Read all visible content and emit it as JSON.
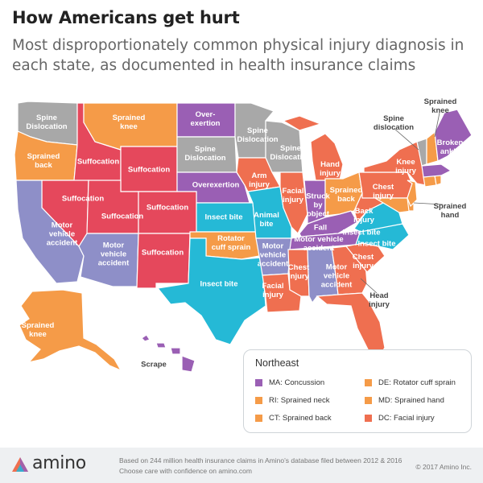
{
  "title": "How Americans get hurt",
  "subtitle": "Most disproportionately common physical injury diagnosis in each state, as documented in health insurance claims",
  "colors": {
    "gray": "#a8a8a8",
    "orange": "#f59b48",
    "coral": "#ef6f50",
    "red": "#e5485c",
    "purple": "#9a5fb4",
    "periwinkle": "#8e8fc8",
    "cyan": "#25b9d6"
  },
  "map_labels": {
    "wa": "Spine\nDislocation",
    "mt": "Sprained\nknee",
    "nd": "Over-\nexertion",
    "or": "Sprained\nback",
    "id": "Suffocation",
    "wy": "Suffocation",
    "sd": "Spine\nDislocation",
    "mn": "Spine\nDislocation",
    "wi": "Spine\nDislocation",
    "nv": "Suffocation",
    "ut": "Suffocation",
    "co": "Suffocation",
    "ne": "Overexertion",
    "ks": "Insect bite",
    "ca": "Motor\nvehicle\naccident",
    "az": "Motor\nvehicle\naccident",
    "nm": "Suffocation",
    "ok": "Rotator\ncuff sprain",
    "tx": "Insect bite",
    "ia": "Arm\ninjury",
    "mo": "Animal\nbite",
    "il": "Facial\ninjury",
    "in": "Struck\nby\nobject",
    "oh": "Sprained\nback",
    "mi": "Hand\ninjury",
    "ky": "Fall",
    "tn": "Motor vehicle\naccident",
    "ar": "Motor\nvehicle\naccident",
    "ms": "Chest\ninjury",
    "la": "Facial\ninjury",
    "al": "Motor\nvehicle\naccident",
    "ga": "Chest\ninjury",
    "fl": "Head\ninjury",
    "sc": "Chest\ninjury",
    "nc": "Insect bite",
    "va": "Insect bite",
    "wv": "Back\ninjury",
    "pa": "Chest\ninjury",
    "ny": "Knee\ninjury",
    "vt": "Spine\ndislocation",
    "nh": "Sprained\nknee",
    "me": "Broken\nankle",
    "nj": "Sprained\nhand",
    "ak": "Sprained\nknee",
    "hi": "Scrape"
  },
  "legend": {
    "title": "Northeast",
    "items": [
      {
        "label": "MA:  Concussion",
        "color": "#9a5fb4"
      },
      {
        "label": "DE:  Rotator cuff sprain",
        "color": "#f59b48"
      },
      {
        "label": "RI:  Sprained neck",
        "color": "#f59b48"
      },
      {
        "label": "MD:  Sprained hand",
        "color": "#f59b48"
      },
      {
        "label": "CT:  Sprained back",
        "color": "#f59b48"
      },
      {
        "label": "DC:  Facial injury",
        "color": "#ef6f50"
      }
    ]
  },
  "footer": {
    "logo_text": "amino",
    "line1": "Based on 244 million health insurance claims in Amino’s database filed between 2012 & 2016",
    "line2": "Choose care with confidence on amino.com",
    "copyright": "© 2017 Amino Inc."
  }
}
